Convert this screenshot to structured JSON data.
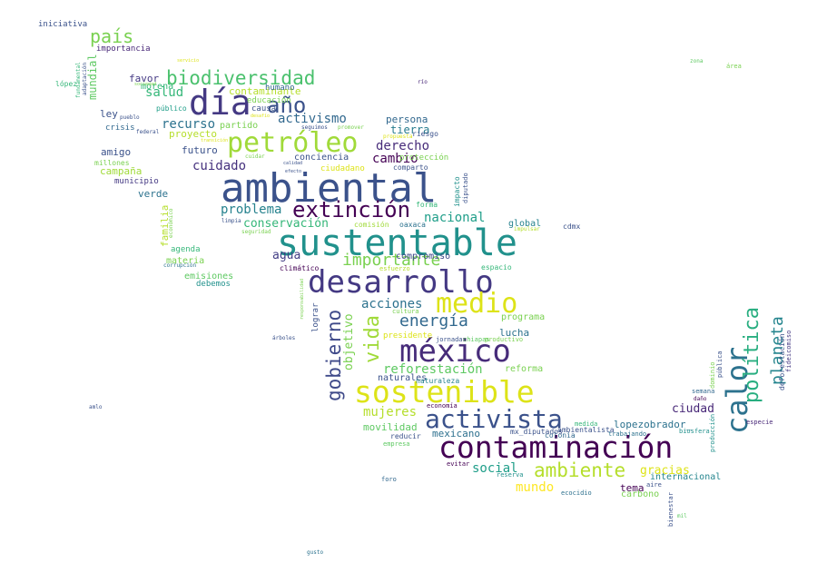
{
  "words": [
    {
      "text": "ambiental",
      "color": "#3b528b"
    },
    {
      "text": "sustentable",
      "color": "#21918c"
    },
    {
      "text": "desarrollo",
      "color": "#443983"
    },
    {
      "text": "contaminación",
      "color": "#440154"
    },
    {
      "text": "petróleo",
      "color": "#a0da39"
    },
    {
      "text": "sostenible",
      "color": "#dde318"
    },
    {
      "text": "méxico",
      "color": "#472c7a"
    },
    {
      "text": "activista",
      "color": "#3b528b"
    },
    {
      "text": "día",
      "color": "#443983"
    },
    {
      "text": "calor",
      "color": "#2c728e"
    },
    {
      "text": "medio",
      "color": "#dde318"
    },
    {
      "text": "extinción",
      "color": "#440154"
    },
    {
      "text": "año",
      "color": "#3b528b"
    },
    {
      "text": "biodiversidad",
      "color": "#4ac16d"
    },
    {
      "text": "ambiente",
      "color": "#b5de2b"
    },
    {
      "text": "política",
      "color": "#28ae80"
    },
    {
      "text": "vida",
      "color": "#a0da39"
    },
    {
      "text": "gobierno",
      "color": "#3e4989"
    },
    {
      "text": "planeta",
      "color": "#25858e"
    },
    {
      "text": "país",
      "color": "#7ad151"
    },
    {
      "text": "importante",
      "color": "#7ad151"
    },
    {
      "text": "energía",
      "color": "#31688e"
    },
    {
      "text": "reforestación",
      "color": "#5ec962"
    },
    {
      "text": "mujeres",
      "color": "#b5de2b"
    },
    {
      "text": "conservación",
      "color": "#35b779"
    },
    {
      "text": "nacional",
      "color": "#1f9e89"
    },
    {
      "text": "problema",
      "color": "#26828e"
    },
    {
      "text": "acciones",
      "color": "#2c728e"
    },
    {
      "text": "cuidado",
      "color": "#46327e"
    },
    {
      "text": "derecho",
      "color": "#472c7a"
    },
    {
      "text": "cambio",
      "color": "#440154"
    },
    {
      "text": "activismo",
      "color": "#31688e"
    },
    {
      "text": "recurso",
      "color": "#2c728e"
    },
    {
      "text": "salud",
      "color": "#35b779"
    },
    {
      "text": "social",
      "color": "#1f9e89"
    },
    {
      "text": "mundo",
      "color": "#fde725"
    },
    {
      "text": "gracias",
      "color": "#dde318"
    },
    {
      "text": "ciudad",
      "color": "#482878"
    },
    {
      "text": "agua",
      "color": "#433e85"
    },
    {
      "text": "objetivo",
      "color": "#7ad151"
    },
    {
      "text": "tierra",
      "color": "#287c8e"
    },
    {
      "text": "persona",
      "color": "#31688e"
    },
    {
      "text": "lucha",
      "color": "#2c728e"
    },
    {
      "text": "movilidad",
      "color": "#5ec962"
    },
    {
      "text": "mexicano",
      "color": "#2d708e"
    },
    {
      "text": "proyecto",
      "color": "#b5de2b"
    },
    {
      "text": "futuro",
      "color": "#3b528b"
    },
    {
      "text": "compromiso",
      "color": "#3e4989"
    },
    {
      "text": "amigo",
      "color": "#3b528b"
    },
    {
      "text": "campaña",
      "color": "#a0da39"
    },
    {
      "text": "verde",
      "color": "#2c728e"
    },
    {
      "text": "mundial",
      "color": "#5ec962"
    },
    {
      "text": "familia",
      "color": "#b5de2b"
    },
    {
      "text": "partido",
      "color": "#7ad151"
    },
    {
      "text": "ley",
      "color": "#3b528b"
    },
    {
      "text": "favor",
      "color": "#443983"
    },
    {
      "text": "morena",
      "color": "#35b779"
    },
    {
      "text": "contaminante",
      "color": "#b5de2b"
    },
    {
      "text": "conciencia",
      "color": "#3b528b"
    },
    {
      "text": "global",
      "color": "#26828e"
    },
    {
      "text": "lopezobrador_",
      "color": "#2c728e"
    },
    {
      "text": "naturales",
      "color": "#3b528b"
    },
    {
      "text": "tema",
      "color": "#440154"
    },
    {
      "text": "internacional",
      "color": "#25858e"
    },
    {
      "text": "carbono",
      "color": "#7ad151"
    },
    {
      "text": "programa",
      "color": "#7ad151"
    },
    {
      "text": "reforma",
      "color": "#7ad151"
    },
    {
      "text": "materia",
      "color": "#7ad151"
    },
    {
      "text": "emisiones",
      "color": "#5ec962"
    },
    {
      "text": "agenda",
      "color": "#35b779"
    },
    {
      "text": "humano",
      "color": "#31688e"
    },
    {
      "text": "iniciativa",
      "color": "#3b528b"
    },
    {
      "text": "importancia",
      "color": "#482878"
    },
    {
      "text": "crisis",
      "color": "#31688e"
    },
    {
      "text": "municipio",
      "color": "#443983"
    },
    {
      "text": "debemos",
      "color": "#21918c"
    },
    {
      "text": "millones",
      "color": "#7ad151"
    },
    {
      "text": "público",
      "color": "#1f9e89"
    },
    {
      "text": "causa",
      "color": "#3b528b"
    },
    {
      "text": "educación",
      "color": "#7ad151"
    },
    {
      "text": "riesgo",
      "color": "#3b528b"
    },
    {
      "text": "protección",
      "color": "#7ad151"
    },
    {
      "text": "ciudadano",
      "color": "#dde318"
    },
    {
      "text": "comparto",
      "color": "#3b528b"
    },
    {
      "text": "impacto",
      "color": "#21918c"
    },
    {
      "text": "diputado",
      "color": "#3b528b"
    },
    {
      "text": "forma",
      "color": "#35b779"
    },
    {
      "text": "oaxaca",
      "color": "#2c728e"
    },
    {
      "text": "comisión",
      "color": "#a0da39"
    },
    {
      "text": "espacio",
      "color": "#35b779"
    },
    {
      "text": "esfuerzo",
      "color": "#b5de2b"
    },
    {
      "text": "climático",
      "color": "#440154"
    },
    {
      "text": "lograr",
      "color": "#3b528b"
    },
    {
      "text": "presidente",
      "color": "#dde318"
    },
    {
      "text": "cultura",
      "color": "#7ad151"
    },
    {
      "text": "jornada",
      "color": "#3b528b"
    },
    {
      "text": "chiapas",
      "color": "#5ec962"
    },
    {
      "text": "productivo",
      "color": "#7ad151"
    },
    {
      "text": "naturaleza",
      "color": "#26828e"
    },
    {
      "text": "economía",
      "color": "#440154"
    },
    {
      "text": "medida",
      "color": "#35b779"
    },
    {
      "text": "colonia",
      "color": "#31688e"
    },
    {
      "text": "trabajando",
      "color": "#2c728e"
    },
    {
      "text": "mx_diputados",
      "color": "#3b528b"
    },
    {
      "text": "reducir",
      "color": "#3b528b"
    },
    {
      "text": "empresa",
      "color": "#5ec962"
    },
    {
      "text": "ambientalista",
      "color": "#3b528b"
    },
    {
      "text": "biosfera",
      "color": "#21918c"
    },
    {
      "text": "especie",
      "color": "#482878"
    },
    {
      "text": "semana",
      "color": "#31688e"
    },
    {
      "text": "daño",
      "color": "#440154"
    },
    {
      "text": "pública",
      "color": "#3b528b"
    },
    {
      "text": "dominio",
      "color": "#7ad151"
    },
    {
      "text": "producción",
      "color": "#21918c"
    },
    {
      "text": "deforestación",
      "color": "#3b528b"
    },
    {
      "text": "fideicomiso",
      "color": "#443983"
    },
    {
      "text": "evitar",
      "color": "#440154"
    },
    {
      "text": "reserva",
      "color": "#21918c"
    },
    {
      "text": "foro",
      "color": "#31688e"
    },
    {
      "text": "ecocidio",
      "color": "#2d708e"
    },
    {
      "text": "aire",
      "color": "#3b528b"
    },
    {
      "text": "bienestar",
      "color": "#3b528b"
    },
    {
      "text": "mil",
      "color": "#5ec962"
    },
    {
      "text": "cdmx",
      "color": "#3b528b"
    },
    {
      "text": "impulsar",
      "color": "#b5de2b"
    },
    {
      "text": "área",
      "color": "#7ad151"
    },
    {
      "text": "zona",
      "color": "#5ec962"
    },
    {
      "text": "río",
      "color": "#482878"
    },
    {
      "text": "amlo",
      "color": "#3b528b"
    },
    {
      "text": "gusto",
      "color": "#2c728e"
    },
    {
      "text": "árboles",
      "color": "#3b528b"
    },
    {
      "text": "responsabilidad",
      "color": "#7ad151"
    },
    {
      "text": "limpia",
      "color": "#3b528b"
    },
    {
      "text": "seguridad",
      "color": "#7ad151"
    },
    {
      "text": "económico",
      "color": "#7ad151"
    },
    {
      "text": "corrupción",
      "color": "#2c728e"
    },
    {
      "text": "fundamental",
      "color": "#35b779"
    },
    {
      "text": "adaptación",
      "color": "#3b528b"
    },
    {
      "text": "federal",
      "color": "#3b528b"
    },
    {
      "text": "pueblo",
      "color": "#3b528b"
    },
    {
      "text": "sociedad",
      "color": "#7ad151"
    },
    {
      "text": "servicio",
      "color": "#dde318"
    },
    {
      "text": "desafío",
      "color": "#dde318"
    },
    {
      "text": "seguimos",
      "color": "#3b528b"
    },
    {
      "text": "promover",
      "color": "#7ad151"
    },
    {
      "text": "propuesta",
      "color": "#dde318"
    },
    {
      "text": "transición",
      "color": "#dde318"
    },
    {
      "text": "cuidar",
      "color": "#7ad151"
    },
    {
      "text": "calidad",
      "color": "#3b528b"
    },
    {
      "text": "efecto",
      "color": "#3b528b"
    },
    {
      "text": "lópez",
      "color": "#35b779"
    }
  ]
}
